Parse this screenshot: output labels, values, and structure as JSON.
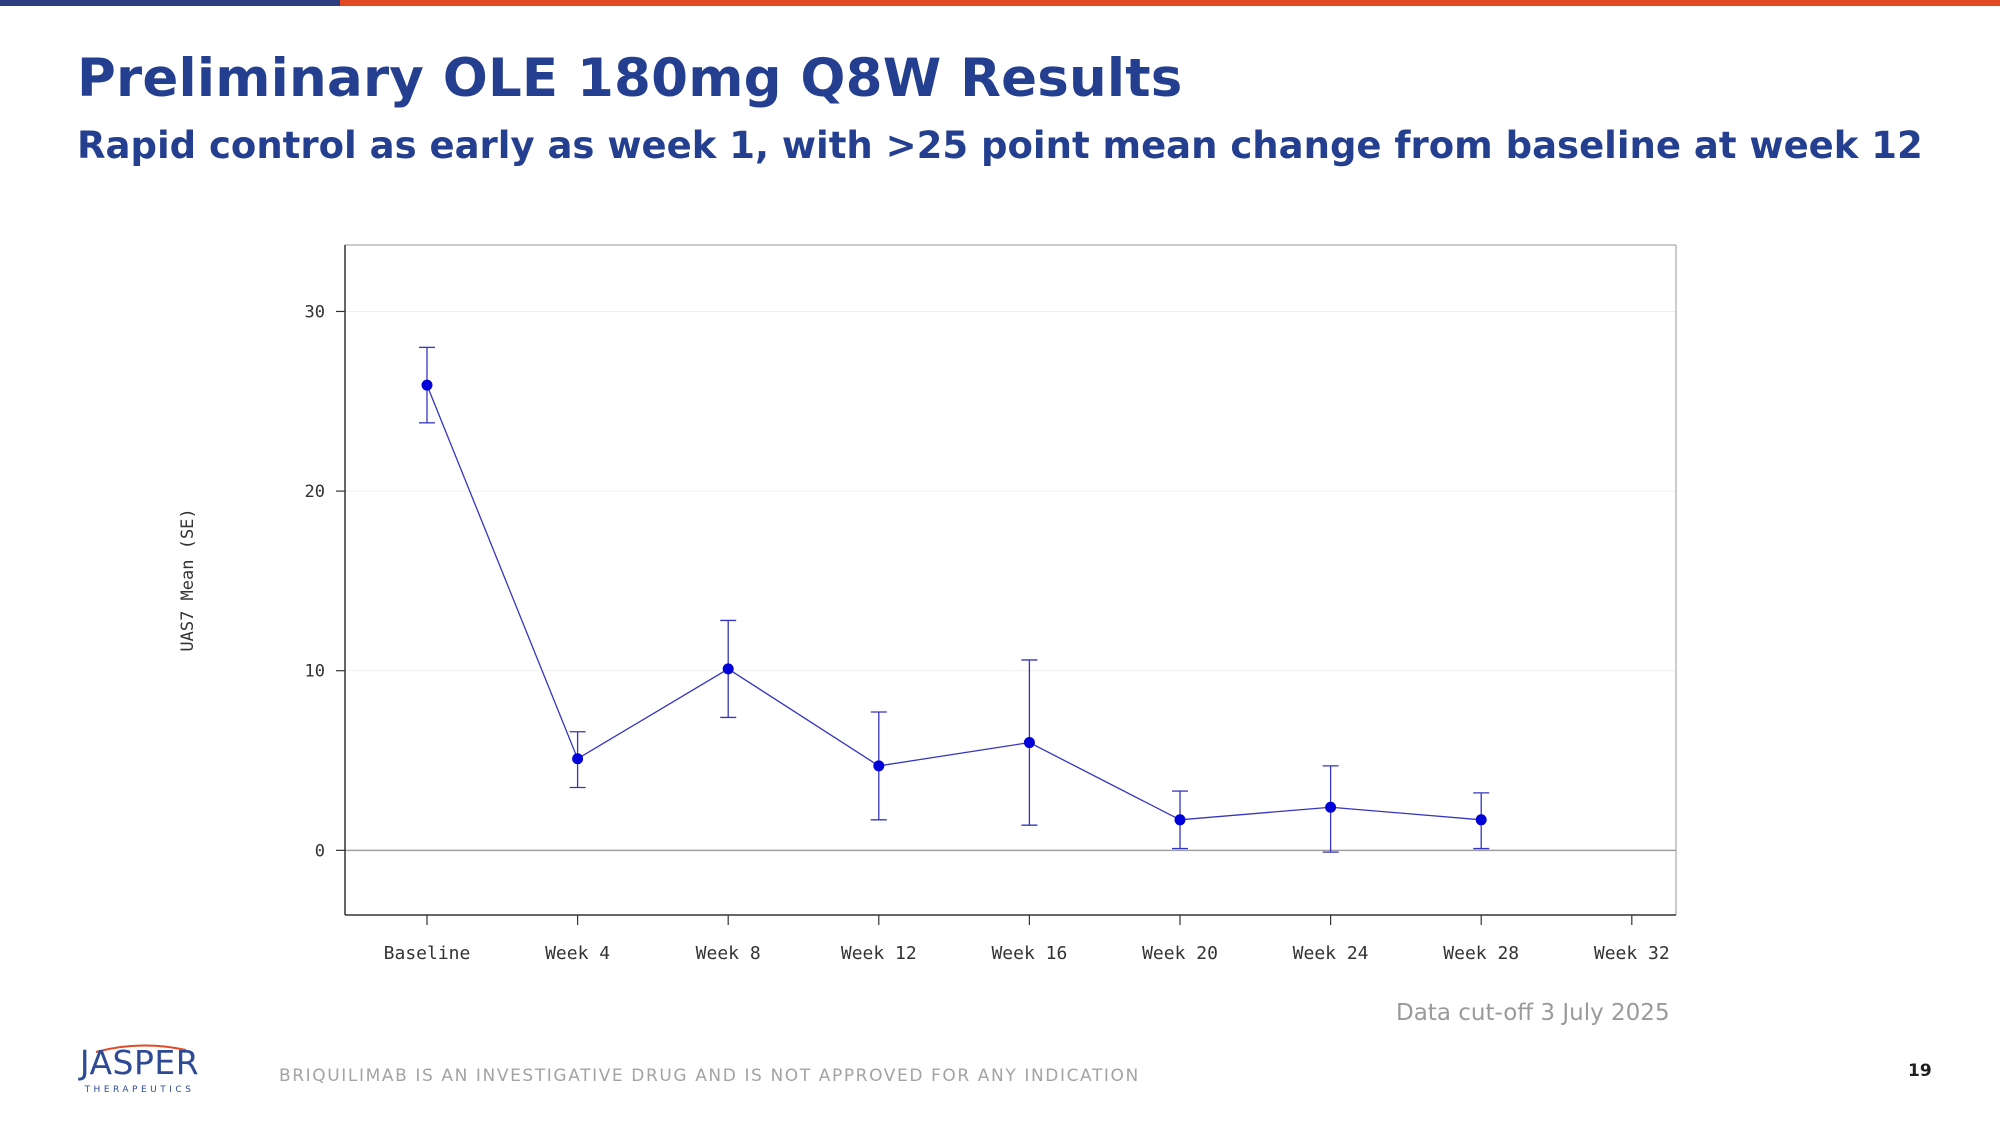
{
  "header": {
    "title": "Preliminary OLE 180mg Q8W Results",
    "subtitle": "Rapid control as early as week 1, with >25 point mean change from baseline at week 12"
  },
  "colors": {
    "title": "#243F8F",
    "top_bar_left": "#2E3D80",
    "top_bar_right": "#E04A24",
    "series": "#3535C0",
    "marker": "#0000D8",
    "logo": "#2E4A95",
    "logo_accent": "#E04A24"
  },
  "chart_data": {
    "type": "line",
    "ylabel": "UAS7 Mean (SE)",
    "xlabel": "",
    "categories": [
      "Baseline",
      "Week 4",
      "Week 8",
      "Week 12",
      "Week 16",
      "Week 20",
      "Week 24",
      "Week 28",
      "Week 32"
    ],
    "yticks": [
      0,
      10,
      20,
      30
    ],
    "ylim": [
      -3.6,
      33.7
    ],
    "grid": "horizontal, faint",
    "reference_line": 0,
    "series": [
      {
        "values": [
          25.9,
          5.1,
          10.1,
          4.7,
          6.0,
          1.7,
          2.4,
          1.7,
          null
        ],
        "upper": [
          28.0,
          6.6,
          12.8,
          7.7,
          10.6,
          3.3,
          4.7,
          3.2,
          null
        ],
        "lower": [
          23.8,
          3.5,
          7.4,
          1.7,
          1.4,
          0.1,
          -0.1,
          0.1,
          null
        ]
      }
    ]
  },
  "footer": {
    "data_cutoff": "Data cut-off 3 July 2025",
    "disclaimer": "BRIQUILIMAB IS AN INVESTIGATIVE DRUG AND IS NOT APPROVED FOR ANY INDICATION",
    "page_number": "19",
    "logo_word": "JASPER",
    "logo_sub": "THERAPEUTICS"
  }
}
